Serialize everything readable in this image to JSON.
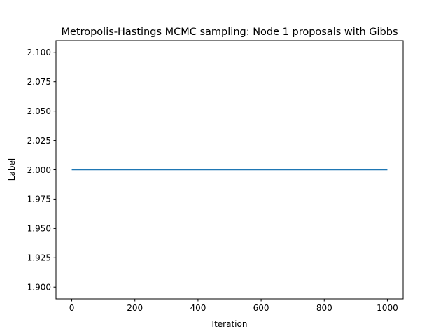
{
  "chart_data": {
    "type": "line",
    "title": "Metropolis-Hastings MCMC sampling: Node 1 proposals with Gibbs",
    "xlabel": "Iteration",
    "ylabel": "Label",
    "xlim": [
      -50,
      1050
    ],
    "ylim": [
      1.89,
      2.11
    ],
    "xticks": [
      0,
      200,
      400,
      600,
      800,
      1000
    ],
    "yticks": [
      1.9,
      1.925,
      1.95,
      1.975,
      2.0,
      2.025,
      2.05,
      2.075,
      2.1
    ],
    "xtick_labels": [
      "0",
      "200",
      "400",
      "600",
      "800",
      "1000"
    ],
    "ytick_labels": [
      "1.900",
      "1.925",
      "1.950",
      "1.975",
      "2.000",
      "2.025",
      "2.050",
      "2.075",
      "2.100"
    ],
    "grid": false,
    "series": [
      {
        "color": "#1f77b4",
        "x": [
          0,
          1000
        ],
        "y": [
          2.0,
          2.0
        ]
      }
    ]
  }
}
